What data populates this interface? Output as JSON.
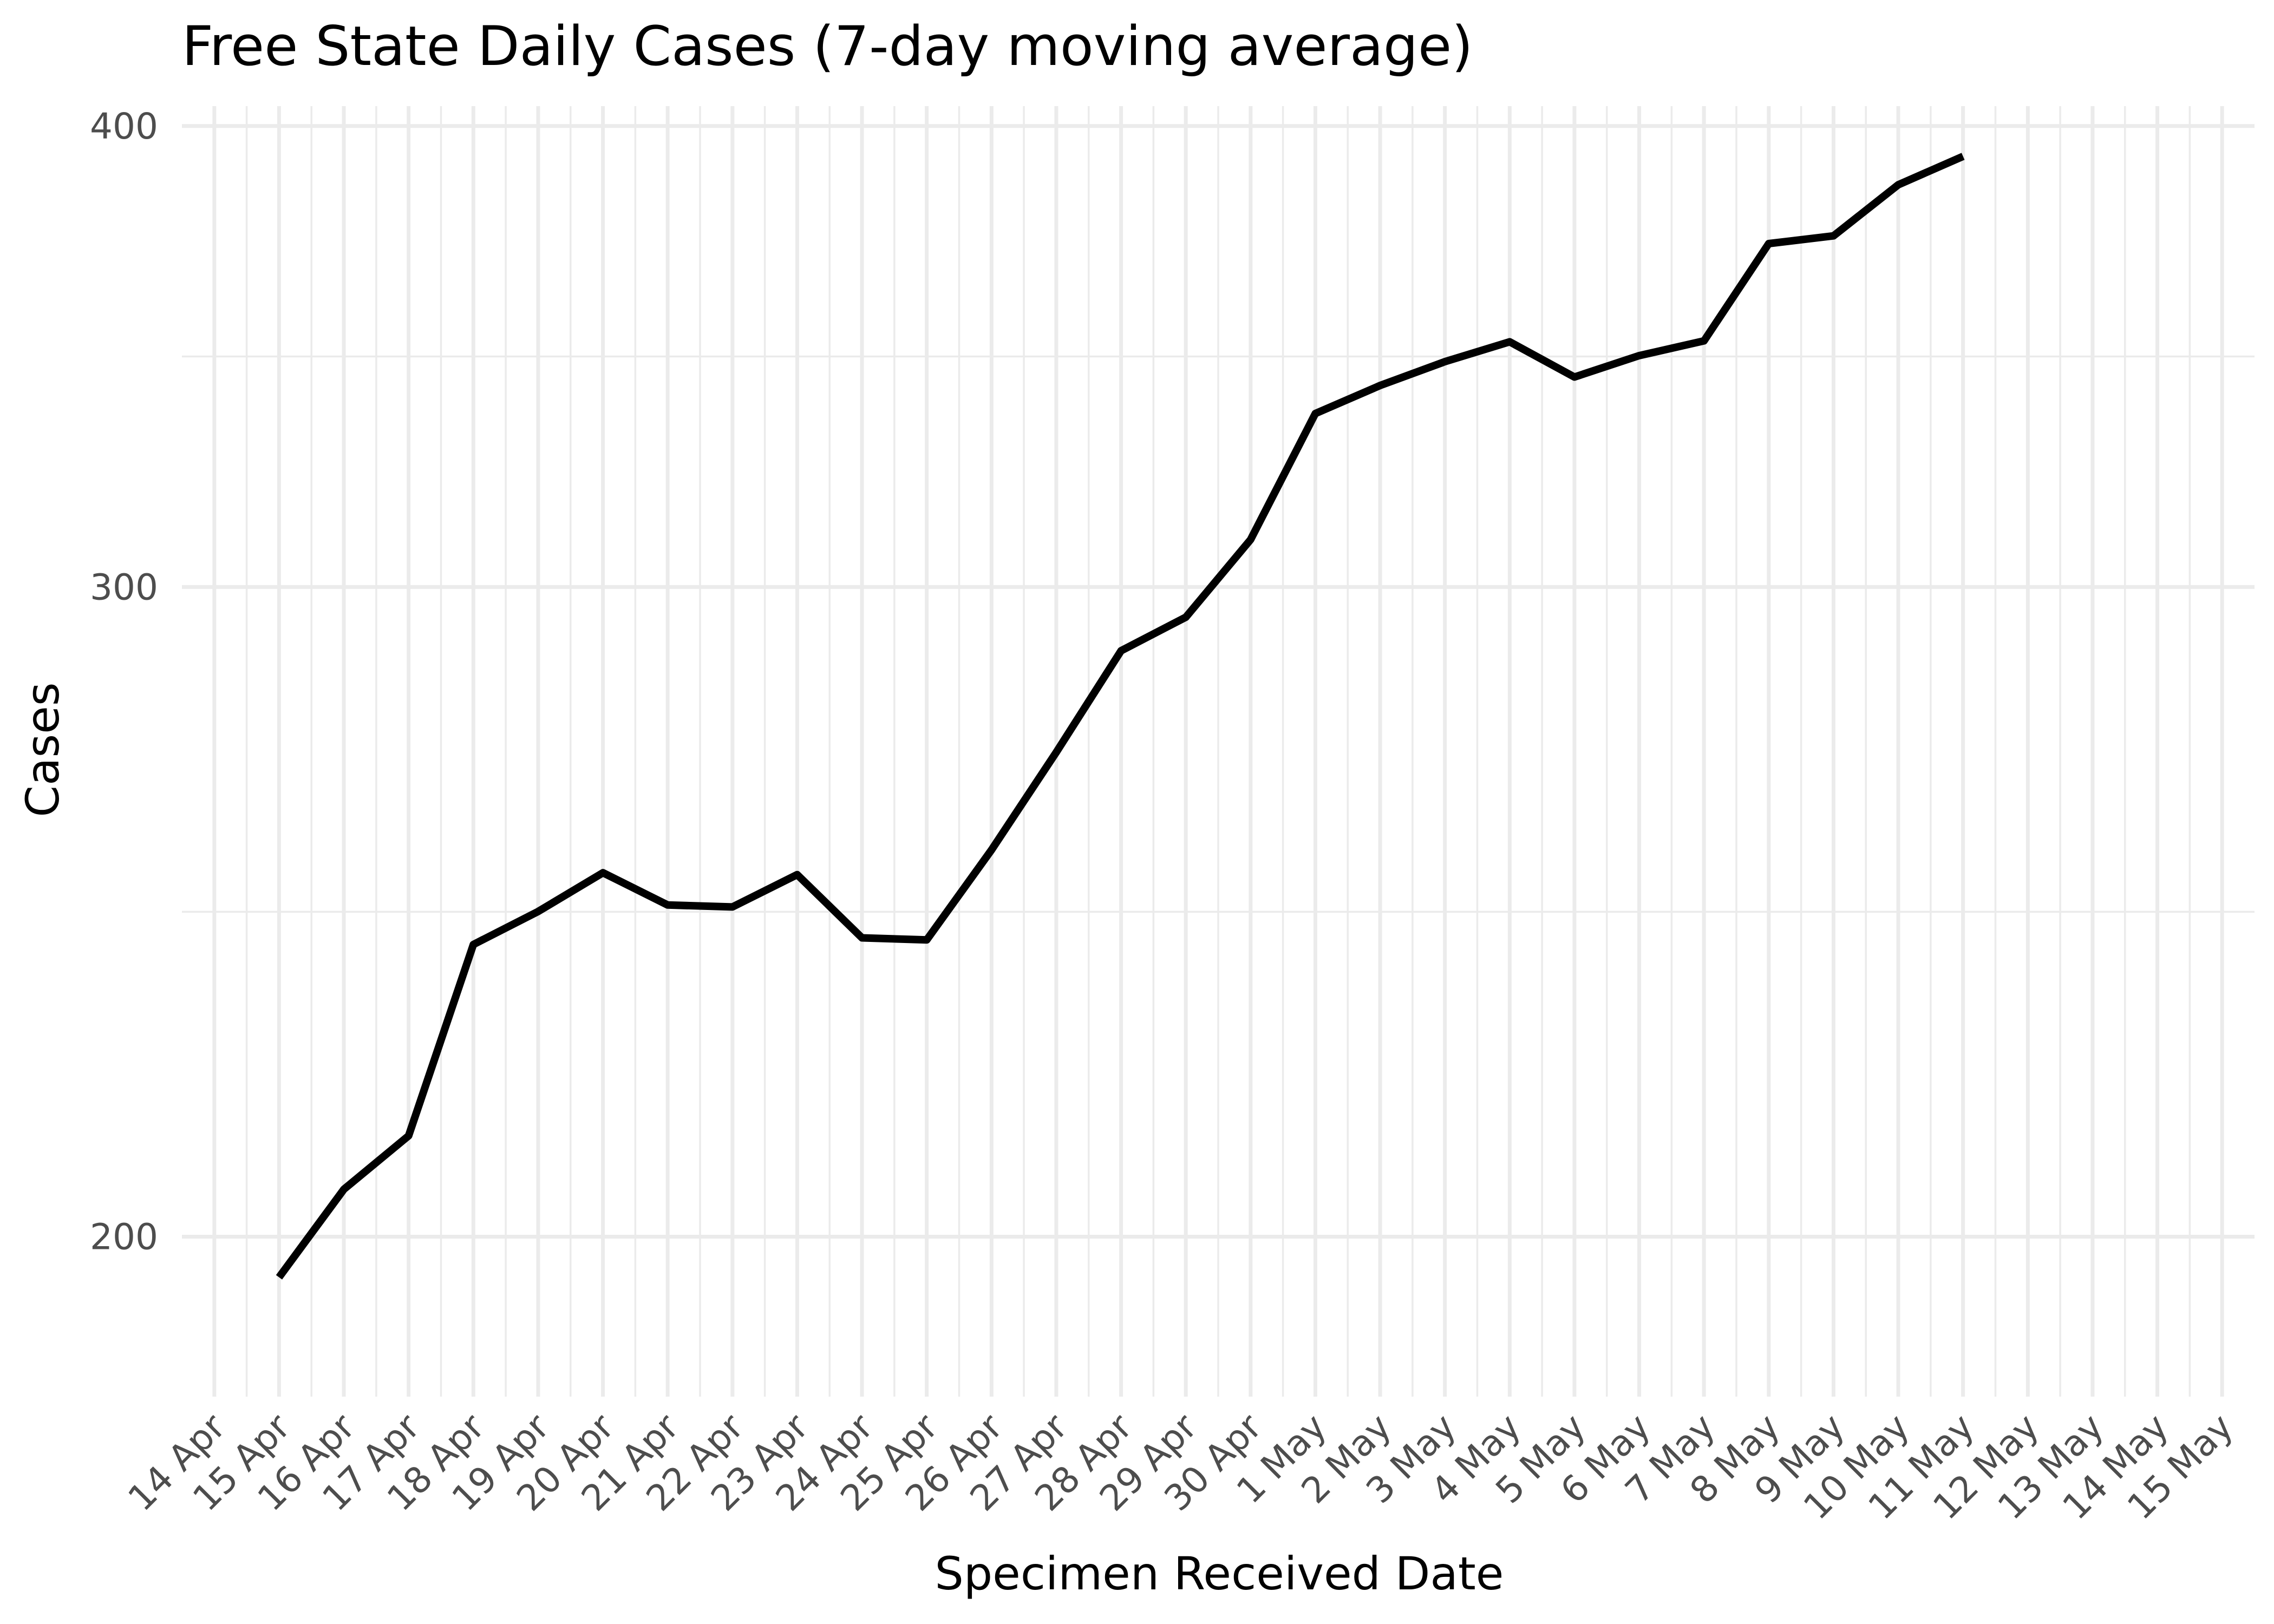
{
  "chart_data": {
    "type": "line",
    "title": "Free State Daily Cases (7-day moving average)",
    "xlabel": "Specimen Received Date",
    "ylabel": "Cases",
    "x_ticks": [
      "14 Apr",
      "15 Apr",
      "16 Apr",
      "17 Apr",
      "18 Apr",
      "19 Apr",
      "20 Apr",
      "21 Apr",
      "22 Apr",
      "23 Apr",
      "24 Apr",
      "25 Apr",
      "26 Apr",
      "27 Apr",
      "28 Apr",
      "29 Apr",
      "30 Apr",
      "1 May",
      "2 May",
      "3 May",
      "4 May",
      "5 May",
      "6 May",
      "7 May",
      "8 May",
      "9 May",
      "10 May",
      "11 May",
      "12 May",
      "13 May",
      "14 May",
      "15 May"
    ],
    "y_ticks": [
      "200",
      "300",
      "400"
    ],
    "xlim": [
      "2020-04-14",
      "2020-05-15"
    ],
    "ylim": [
      181,
      405
    ],
    "y_scale": "log",
    "grid": true,
    "series": [
      {
        "color": "#000000",
        "x": [
          "2020-04-15",
          "2020-04-16",
          "2020-04-17",
          "2020-04-18",
          "2020-04-19",
          "2020-04-20",
          "2020-04-21",
          "2020-04-22",
          "2020-04-23",
          "2020-04-24",
          "2020-04-25",
          "2020-04-26",
          "2020-04-27",
          "2020-04-28",
          "2020-04-29",
          "2020-04-30",
          "2020-05-01",
          "2020-05-02",
          "2020-05-03",
          "2020-05-04",
          "2020-05-05",
          "2020-05-06",
          "2020-05-07",
          "2020-05-08",
          "2020-05-09",
          "2020-05-10",
          "2020-05-11"
        ],
        "values": [
          195,
          206,
          213,
          240,
          245,
          251,
          246,
          245.7,
          250.7,
          241,
          240.7,
          254.6,
          270.6,
          288.3,
          294.4,
          309,
          334.3,
          340.2,
          345.3,
          349.6,
          342,
          346.6,
          349.8,
          371.7,
          373.5,
          385.6,
          392.5
        ]
      }
    ]
  }
}
